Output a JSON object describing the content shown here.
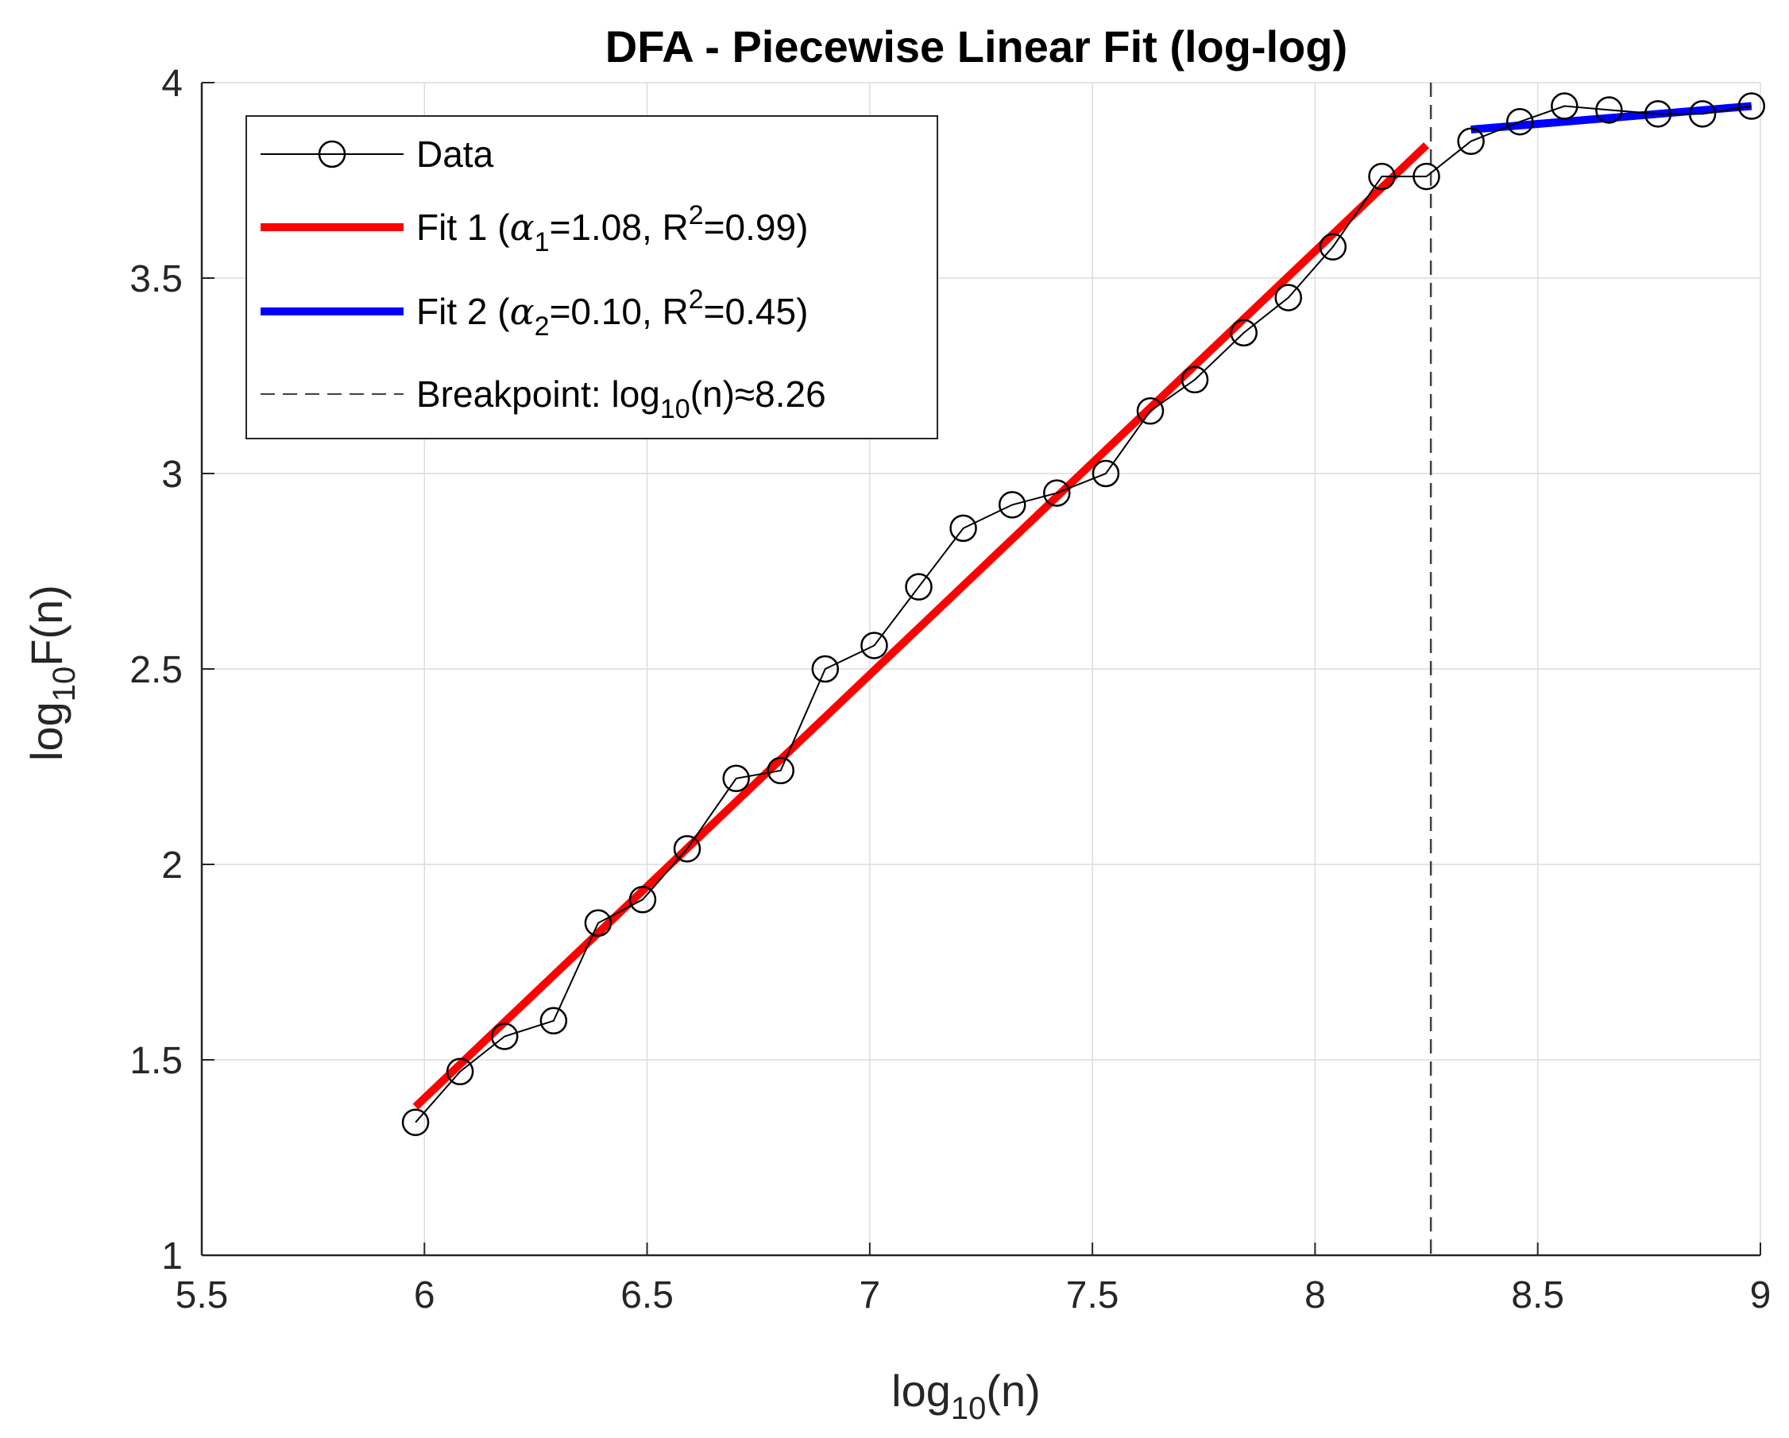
{
  "chart_data": {
    "type": "line",
    "title": "DFA - Piecewise Linear Fit (log-log)",
    "xlabel": {
      "base": "log",
      "sub": "10",
      "rest": "(n)"
    },
    "ylabel": {
      "base": "log",
      "sub": "10",
      "rest": "F(n)"
    },
    "xlim": [
      5.5,
      9
    ],
    "ylim": [
      1,
      4
    ],
    "grid": true,
    "xticks": [
      5.5,
      6,
      6.5,
      7,
      7.5,
      8,
      8.5,
      9
    ],
    "xtick_labels": [
      "5.5",
      "6",
      "6.5",
      "7",
      "7.5",
      "8",
      "8.5",
      "9"
    ],
    "yticks": [
      1,
      1.5,
      2,
      2.5,
      3,
      3.5,
      4
    ],
    "ytick_labels": [
      "1",
      "1.5",
      "2",
      "2.5",
      "3",
      "3.5",
      "4"
    ],
    "legend_position": "top-left",
    "series": [
      {
        "name": "Data",
        "kind": "line-markers",
        "color": "#000000",
        "x": [
          5.98,
          6.08,
          6.18,
          6.29,
          6.39,
          6.49,
          6.59,
          6.7,
          6.8,
          6.9,
          7.01,
          7.11,
          7.21,
          7.32,
          7.42,
          7.53,
          7.63,
          7.73,
          7.84,
          7.94,
          8.04,
          8.15,
          8.25,
          8.35,
          8.46,
          8.56,
          8.66,
          8.77,
          8.87,
          8.98
        ],
        "y": [
          1.34,
          1.47,
          1.56,
          1.6,
          1.85,
          1.91,
          2.04,
          2.22,
          2.24,
          2.5,
          2.56,
          2.71,
          2.86,
          2.92,
          2.95,
          3.0,
          3.16,
          3.24,
          3.36,
          3.45,
          3.58,
          3.76,
          3.76,
          3.85,
          3.9,
          3.94,
          3.93,
          3.92,
          3.92,
          3.94
        ]
      },
      {
        "name": "Fit 1",
        "kind": "fit",
        "color": "#ff0000",
        "alpha_symbol": "α",
        "alpha_sub": "1",
        "alpha_value": "=1.08, R",
        "r2_sup": "2",
        "r2_value": "=0.99)",
        "label_prefix": "Fit 1 (",
        "x": [
          5.98,
          8.25
        ],
        "y": [
          1.38,
          3.84
        ]
      },
      {
        "name": "Fit 2",
        "kind": "fit",
        "color": "#0000ff",
        "alpha_symbol": "α",
        "alpha_sub": "2",
        "alpha_value": "=0.10, R",
        "r2_sup": "2",
        "r2_value": "=0.45)",
        "label_prefix": "Fit 2 (",
        "x": [
          8.35,
          8.98
        ],
        "y": [
          3.88,
          3.94
        ]
      }
    ],
    "breakpoint": {
      "x": 8.26,
      "color": "#404040",
      "label_prefix": "Breakpoint: log",
      "label_sub": "10",
      "label_suffix": "(n)≈8.26"
    }
  }
}
